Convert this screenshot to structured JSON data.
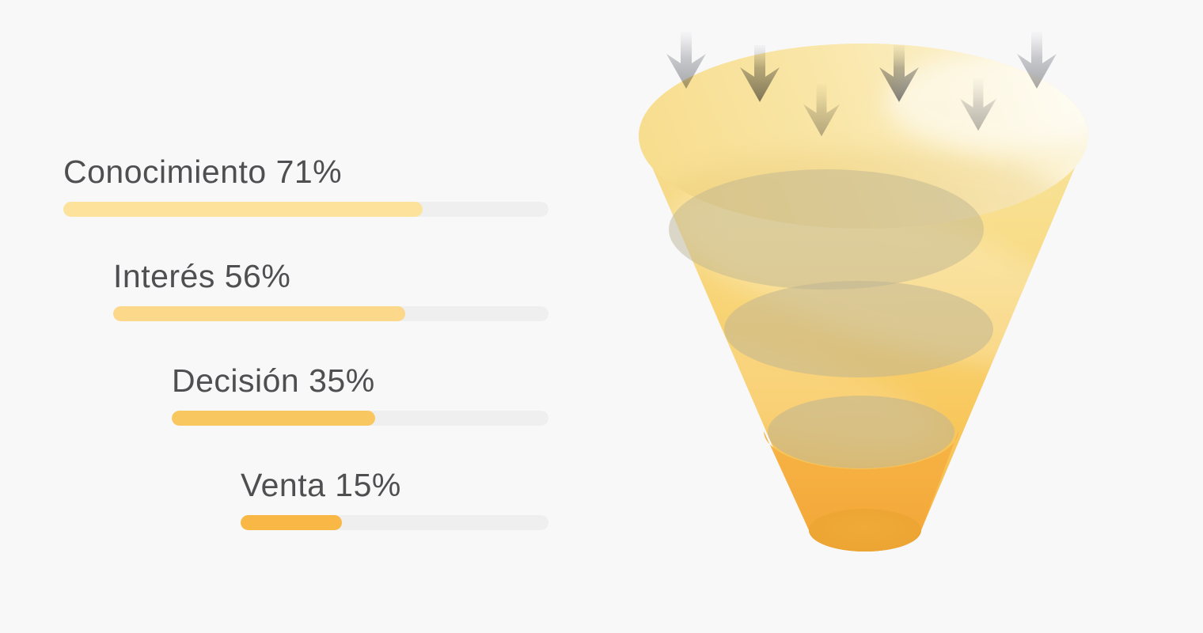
{
  "background_color": "#F8F8F9",
  "text_color": "#4F4F51",
  "chart_data": {
    "type": "funnel",
    "title": "",
    "legend_position": "left",
    "track_color": "#EFEFF0",
    "stages": [
      {
        "label": "Conocimiento",
        "percent": 71,
        "text": "Conocimiento 71%",
        "bar_fill_pct": 74,
        "bar_color": "#FCE29B"
      },
      {
        "label": "Interés",
        "percent": 56,
        "text": "Interés 56%",
        "bar_fill_pct": 67,
        "bar_color": "#FBD88A"
      },
      {
        "label": "Decisión",
        "percent": 35,
        "text": "Decisión 35%",
        "bar_fill_pct": 54,
        "bar_color": "#F9C75F"
      },
      {
        "label": "Venta",
        "percent": 15,
        "text": "Venta 15%",
        "bar_fill_pct": 33,
        "bar_color": "#F9B845"
      }
    ],
    "illustration": {
      "kind": "3d-funnel-cone",
      "arrow_icon": "down-arrow",
      "arrow_count": 6,
      "funnel_top_color": "#F9E7A6",
      "funnel_mid_color": "#F8CE66",
      "funnel_bottom_color": "#F3AC3B",
      "liquid_surface_color": "#D9C98F",
      "arrow_color": "#A9AAAE"
    }
  }
}
